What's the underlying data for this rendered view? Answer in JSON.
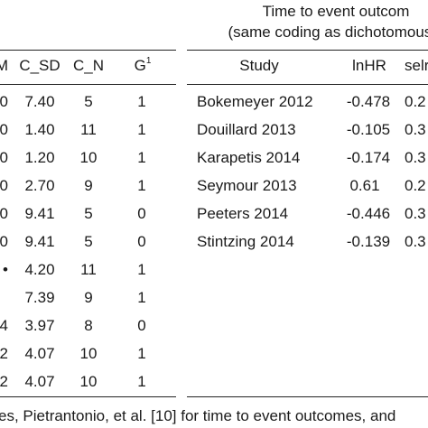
{
  "header": {
    "group_title_line1": "Time to event outcom",
    "group_title_line2": "(same coding as dichotomous c",
    "left_columns": {
      "m": "M",
      "c_sd": "C_SD",
      "c_n": "C_N",
      "g": "G",
      "g_sup": "1"
    },
    "right_columns": {
      "study": "Study",
      "lnhr": "lnHR",
      "selnhr": "selr"
    }
  },
  "left_rows": [
    {
      "m": "0",
      "c_sd": "7.40",
      "c_n": "5",
      "g": "1"
    },
    {
      "m": "0",
      "c_sd": "1.40",
      "c_n": "11",
      "g": "1"
    },
    {
      "m": "0",
      "c_sd": "1.20",
      "c_n": "10",
      "g": "1"
    },
    {
      "m": "0",
      "c_sd": "2.70",
      "c_n": "9",
      "g": "1"
    },
    {
      "m": "0",
      "c_sd": "9.41",
      "c_n": "5",
      "g": "0"
    },
    {
      "m": "0",
      "c_sd": "9.41",
      "c_n": "5",
      "g": "0"
    },
    {
      "m": "•",
      "c_sd": "4.20",
      "c_n": "11",
      "g": "1"
    },
    {
      "m": "",
      "c_sd": "7.39",
      "c_n": "9",
      "g": "1"
    },
    {
      "m": "4",
      "c_sd": "3.97",
      "c_n": "8",
      "g": "0"
    },
    {
      "m": "2",
      "c_sd": "4.07",
      "c_n": "10",
      "g": "1"
    },
    {
      "m": "2",
      "c_sd": "4.07",
      "c_n": "10",
      "g": "1"
    }
  ],
  "right_rows": [
    {
      "study": "Bokemeyer 2012",
      "lnhr": "-0.478",
      "selnhr": "0.2"
    },
    {
      "study": "Douillard 2013",
      "lnhr": "-0.105",
      "selnhr": "0.3"
    },
    {
      "study": "Karapetis 2014",
      "lnhr": "-0.174",
      "selnhr": "0.3"
    },
    {
      "study": "Seymour 2013",
      "lnhr": "0.61",
      "selnhr": "0.2"
    },
    {
      "study": "Peeters 2014",
      "lnhr": "-0.446",
      "selnhr": "0.3"
    },
    {
      "study": "Stintzing 2014",
      "lnhr": "-0.139",
      "selnhr": "0.3"
    }
  ],
  "footnote": "es, Pietrantonio, et al. [10] for time to event outcomes, and"
}
